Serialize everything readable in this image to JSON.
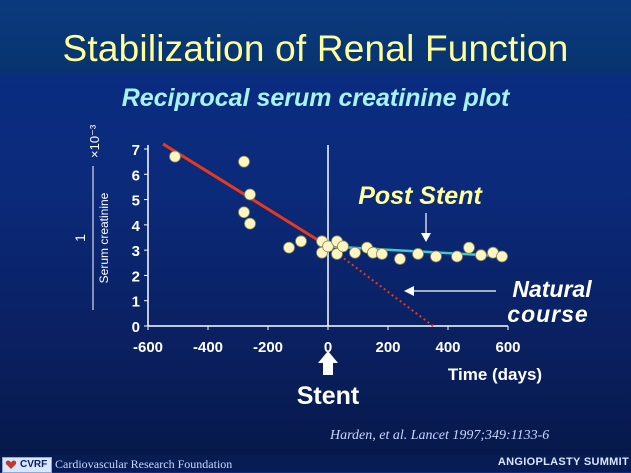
{
  "title": "Stabilization of Renal Function",
  "subtitle": "Reciprocal serum creatinine plot",
  "citation": "Harden, et al. Lancet 1997;349:1133-6",
  "footer": {
    "logo": "CVRF",
    "foundation": "Cardiovascular Research Foundation",
    "conference": "ANGIOPLASTY SUMMIT"
  },
  "colors": {
    "title": "#ffff99",
    "subtitle": "#a8f3ee",
    "pre_stent_line": "#e8391c",
    "post_stent_line": "#3fc9c9",
    "points": "#fdf6c0",
    "axes": "#ffffff"
  },
  "chart_data": {
    "type": "scatter",
    "ylabel_numerator": "1",
    "ylabel_denominator": "Serum creatinine",
    "ylabel_scale": "×10⁻³",
    "xlabel": "Time (days)",
    "xlim": [
      -600,
      600
    ],
    "ylim": [
      0,
      7
    ],
    "x_ticks": [
      -600,
      -400,
      -200,
      0,
      200,
      400,
      600
    ],
    "y_ticks": [
      0,
      1,
      2,
      3,
      4,
      5,
      6,
      7
    ],
    "stent_label": "Stent",
    "stent_x": 0,
    "annotations": {
      "post_stent": "Post Stent",
      "natural_course_line1": "Natural",
      "natural_course_line2": "course"
    },
    "points": [
      {
        "x": -510,
        "y": 6.7
      },
      {
        "x": -280,
        "y": 6.5
      },
      {
        "x": -260,
        "y": 5.2
      },
      {
        "x": -280,
        "y": 4.5
      },
      {
        "x": -260,
        "y": 4.05
      },
      {
        "x": -130,
        "y": 3.1
      },
      {
        "x": -90,
        "y": 3.35
      },
      {
        "x": -20,
        "y": 3.35
      },
      {
        "x": -20,
        "y": 2.9
      },
      {
        "x": 0,
        "y": 3.15
      },
      {
        "x": 30,
        "y": 3.35
      },
      {
        "x": 30,
        "y": 2.85
      },
      {
        "x": 50,
        "y": 3.15
      },
      {
        "x": 90,
        "y": 2.9
      },
      {
        "x": 130,
        "y": 3.1
      },
      {
        "x": 150,
        "y": 2.9
      },
      {
        "x": 180,
        "y": 2.85
      },
      {
        "x": 240,
        "y": 2.65
      },
      {
        "x": 300,
        "y": 2.85
      },
      {
        "x": 360,
        "y": 2.75
      },
      {
        "x": 430,
        "y": 2.75
      },
      {
        "x": 470,
        "y": 3.1
      },
      {
        "x": 510,
        "y": 2.8
      },
      {
        "x": 550,
        "y": 2.9
      },
      {
        "x": 580,
        "y": 2.75
      }
    ],
    "series": [
      {
        "kind": "pre-stent-fit",
        "x": [
          -550,
          0
        ],
        "y": [
          7.2,
          3.15
        ]
      },
      {
        "kind": "natural-course-extrapolation",
        "x": [
          0,
          350
        ],
        "y": [
          3.15,
          0
        ]
      },
      {
        "kind": "post-stent-fit",
        "x": [
          0,
          600
        ],
        "y": [
          3.15,
          2.75
        ]
      }
    ]
  }
}
